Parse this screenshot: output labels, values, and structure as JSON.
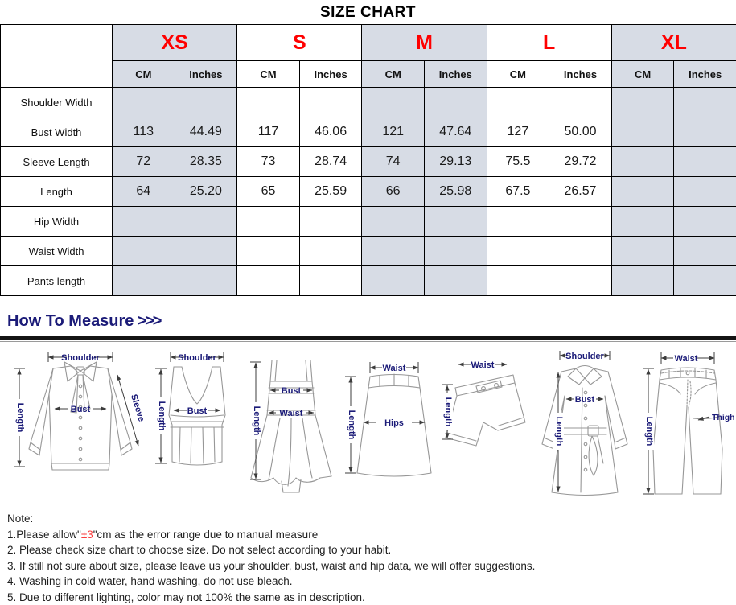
{
  "title": "SIZE CHART",
  "table": {
    "sizes": [
      {
        "label": "XS"
      },
      {
        "label": "S"
      },
      {
        "label": "M"
      },
      {
        "label": "L"
      },
      {
        "label": "XL"
      }
    ],
    "unit_headers": [
      "CM",
      "Inches"
    ],
    "rows": [
      {
        "label": "Shoulder Width",
        "values": [
          "",
          "",
          "",
          "",
          "",
          "",
          "",
          "",
          "",
          ""
        ]
      },
      {
        "label": "Bust Width",
        "values": [
          "113",
          "44.49",
          "117",
          "46.06",
          "121",
          "47.64",
          "127",
          "50.00",
          "",
          ""
        ]
      },
      {
        "label": "Sleeve Length",
        "values": [
          "72",
          "28.35",
          "73",
          "28.74",
          "74",
          "29.13",
          "75.5",
          "29.72",
          "",
          ""
        ]
      },
      {
        "label": "Length",
        "values": [
          "64",
          "25.20",
          "65",
          "25.59",
          "66",
          "25.98",
          "67.5",
          "26.57",
          "",
          ""
        ]
      },
      {
        "label": "Hip Width",
        "values": [
          "",
          "",
          "",
          "",
          "",
          "",
          "",
          "",
          "",
          ""
        ]
      },
      {
        "label": "Waist Width",
        "values": [
          "",
          "",
          "",
          "",
          "",
          "",
          "",
          "",
          "",
          ""
        ]
      },
      {
        "label": "Pants length",
        "values": [
          "",
          "",
          "",
          "",
          "",
          "",
          "",
          "",
          "",
          ""
        ]
      }
    ]
  },
  "measure": {
    "heading": "How To Measure",
    "arrows": ">>>",
    "garments": [
      {
        "name": "blouse",
        "labels": {
          "shoulder": "Shoulder",
          "length": "Length",
          "bust": "Bust",
          "sleeve": "Sleeve"
        }
      },
      {
        "name": "tank-top",
        "labels": {
          "shoulder": "Shoulder",
          "length": "Length",
          "bust": "Bust"
        }
      },
      {
        "name": "dress",
        "labels": {
          "bust": "Bust",
          "waist": "Waist",
          "length": "Length"
        }
      },
      {
        "name": "skirt",
        "labels": {
          "waist": "Waist",
          "hips": "Hips",
          "length": "Length"
        }
      },
      {
        "name": "shorts",
        "labels": {
          "waist": "Waist",
          "length": "Length"
        }
      },
      {
        "name": "coat",
        "labels": {
          "shoulder": "Shoulder",
          "bust": "Bust",
          "length": "Length"
        }
      },
      {
        "name": "pants",
        "labels": {
          "waist": "Waist",
          "thigh": "Thigh",
          "length": "Length"
        }
      }
    ]
  },
  "notes": {
    "heading": "Note:",
    "line1": {
      "prefix": "1.Please allow\"",
      "em": "±3",
      "suffix": "\"cm as the error range due to manual measure"
    },
    "items": [
      "2. Please check size chart to choose size. Do not select according to your habit.",
      "3. If still not sure about size, please leave us your shoulder, bust, waist and hip data, we will offer suggestions.",
      "4. Washing in cold water, hand washing, do not use bleach.",
      "5. Due to different lighting, color may not 100% the same as in description."
    ]
  },
  "colors": {
    "size-red": "#ff0000",
    "shade": "#d7dce5",
    "navy": "#1b1b78",
    "note-red": "#fa3b3b"
  }
}
